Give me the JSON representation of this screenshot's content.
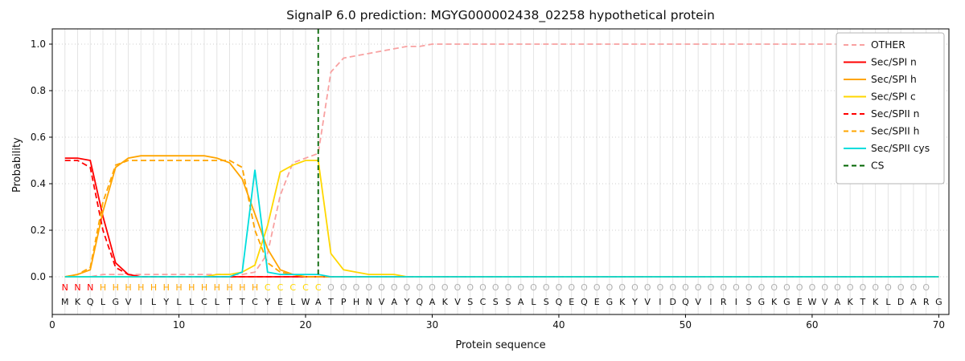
{
  "chart_data": {
    "type": "line",
    "title": "SignalP 6.0 prediction: MGYG000002438_02258 hypothetical protein",
    "xlabel": "Protein sequence",
    "ylabel": "Probability",
    "x_range": [
      1,
      70
    ],
    "xlim": [
      0,
      70.8
    ],
    "ylim": [
      0.0,
      1.0
    ],
    "xticks": [
      0,
      10,
      20,
      30,
      40,
      50,
      60,
      70
    ],
    "yticks": [
      0.0,
      0.2,
      0.4,
      0.6,
      0.8,
      1.0
    ],
    "grid": true,
    "legend_position": "upper right",
    "legend": [
      "OTHER",
      "Sec/SPI n",
      "Sec/SPI h",
      "Sec/SPI c",
      "Sec/SPII n",
      "Sec/SPII h",
      "Sec/SPII cys",
      "CS"
    ],
    "series": [
      {
        "name": "OTHER",
        "color": "#f8a1a1",
        "dash": true,
        "values": [
          0.0,
          0.0,
          0.0,
          0.01,
          0.01,
          0.01,
          0.01,
          0.01,
          0.01,
          0.01,
          0.01,
          0.01,
          0.01,
          0.01,
          0.01,
          0.02,
          0.1,
          0.35,
          0.49,
          0.51,
          0.53,
          0.88,
          0.94,
          0.95,
          0.96,
          0.97,
          0.98,
          0.99,
          0.99,
          1.0,
          1.0,
          1.0,
          1.0,
          1.0,
          1.0,
          1.0,
          1.0,
          1.0,
          1.0,
          1.0,
          1.0,
          1.0,
          1.0,
          1.0,
          1.0,
          1.0,
          1.0,
          1.0,
          1.0,
          1.0,
          1.0,
          1.0,
          1.0,
          1.0,
          1.0,
          1.0,
          1.0,
          1.0,
          1.0,
          1.0,
          1.0,
          1.0,
          1.0,
          1.0,
          1.0,
          1.0,
          1.0,
          1.0,
          1.0,
          1.0
        ]
      },
      {
        "name": "Sec/SPI n",
        "color": "#ff0000",
        "dash": false,
        "values": [
          0.51,
          0.51,
          0.5,
          0.26,
          0.06,
          0.01,
          0.0,
          0.0,
          0.0,
          0.0,
          0.0,
          0.0,
          0.0,
          0.0,
          0.0,
          0.0,
          0.0,
          0.0,
          0.0,
          0.0,
          0.0,
          0.0,
          0.0,
          0.0,
          0.0,
          0.0,
          0.0,
          0.0,
          0.0,
          0.0,
          0.0,
          0.0,
          0.0,
          0.0,
          0.0,
          0.0,
          0.0,
          0.0,
          0.0,
          0.0,
          0.0,
          0.0,
          0.0,
          0.0,
          0.0,
          0.0,
          0.0,
          0.0,
          0.0,
          0.0,
          0.0,
          0.0,
          0.0,
          0.0,
          0.0,
          0.0,
          0.0,
          0.0,
          0.0,
          0.0,
          0.0,
          0.0,
          0.0,
          0.0,
          0.0,
          0.0,
          0.0,
          0.0,
          0.0,
          0.0
        ]
      },
      {
        "name": "Sec/SPI h",
        "color": "#ffa500",
        "dash": false,
        "values": [
          0.0,
          0.01,
          0.03,
          0.28,
          0.47,
          0.51,
          0.52,
          0.52,
          0.52,
          0.52,
          0.52,
          0.52,
          0.51,
          0.49,
          0.42,
          0.27,
          0.12,
          0.03,
          0.01,
          0.0,
          0.0,
          0.0,
          0.0,
          0.0,
          0.0,
          0.0,
          0.0,
          0.0,
          0.0,
          0.0,
          0.0,
          0.0,
          0.0,
          0.0,
          0.0,
          0.0,
          0.0,
          0.0,
          0.0,
          0.0,
          0.0,
          0.0,
          0.0,
          0.0,
          0.0,
          0.0,
          0.0,
          0.0,
          0.0,
          0.0,
          0.0,
          0.0,
          0.0,
          0.0,
          0.0,
          0.0,
          0.0,
          0.0,
          0.0,
          0.0,
          0.0,
          0.0,
          0.0,
          0.0,
          0.0,
          0.0,
          0.0,
          0.0,
          0.0,
          0.0
        ]
      },
      {
        "name": "Sec/SPI c",
        "color": "#ffd700",
        "dash": false,
        "values": [
          0.0,
          0.0,
          0.0,
          0.0,
          0.0,
          0.0,
          0.0,
          0.0,
          0.0,
          0.0,
          0.0,
          0.0,
          0.01,
          0.01,
          0.02,
          0.05,
          0.22,
          0.45,
          0.48,
          0.5,
          0.5,
          0.1,
          0.03,
          0.02,
          0.01,
          0.01,
          0.01,
          0.0,
          0.0,
          0.0,
          0.0,
          0.0,
          0.0,
          0.0,
          0.0,
          0.0,
          0.0,
          0.0,
          0.0,
          0.0,
          0.0,
          0.0,
          0.0,
          0.0,
          0.0,
          0.0,
          0.0,
          0.0,
          0.0,
          0.0,
          0.0,
          0.0,
          0.0,
          0.0,
          0.0,
          0.0,
          0.0,
          0.0,
          0.0,
          0.0,
          0.0,
          0.0,
          0.0,
          0.0,
          0.0,
          0.0,
          0.0,
          0.0,
          0.0,
          0.0
        ]
      },
      {
        "name": "Sec/SPII n",
        "color": "#ff0000",
        "dash": true,
        "values": [
          0.5,
          0.5,
          0.47,
          0.2,
          0.04,
          0.01,
          0.0,
          0.0,
          0.0,
          0.0,
          0.0,
          0.0,
          0.0,
          0.0,
          0.0,
          0.0,
          0.0,
          0.0,
          0.0,
          0.0,
          0.0,
          0.0,
          0.0,
          0.0,
          0.0,
          0.0,
          0.0,
          0.0,
          0.0,
          0.0,
          0.0,
          0.0,
          0.0,
          0.0,
          0.0,
          0.0,
          0.0,
          0.0,
          0.0,
          0.0,
          0.0,
          0.0,
          0.0,
          0.0,
          0.0,
          0.0,
          0.0,
          0.0,
          0.0,
          0.0,
          0.0,
          0.0,
          0.0,
          0.0,
          0.0,
          0.0,
          0.0,
          0.0,
          0.0,
          0.0,
          0.0,
          0.0,
          0.0,
          0.0,
          0.0,
          0.0,
          0.0,
          0.0,
          0.0,
          0.0
        ]
      },
      {
        "name": "Sec/SPII h",
        "color": "#ffa500",
        "dash": true,
        "values": [
          0.0,
          0.01,
          0.04,
          0.32,
          0.48,
          0.5,
          0.5,
          0.5,
          0.5,
          0.5,
          0.5,
          0.5,
          0.5,
          0.5,
          0.47,
          0.2,
          0.06,
          0.02,
          0.01,
          0.0,
          0.0,
          0.0,
          0.0,
          0.0,
          0.0,
          0.0,
          0.0,
          0.0,
          0.0,
          0.0,
          0.0,
          0.0,
          0.0,
          0.0,
          0.0,
          0.0,
          0.0,
          0.0,
          0.0,
          0.0,
          0.0,
          0.0,
          0.0,
          0.0,
          0.0,
          0.0,
          0.0,
          0.0,
          0.0,
          0.0,
          0.0,
          0.0,
          0.0,
          0.0,
          0.0,
          0.0,
          0.0,
          0.0,
          0.0,
          0.0,
          0.0,
          0.0,
          0.0,
          0.0,
          0.0,
          0.0,
          0.0,
          0.0,
          0.0,
          0.0
        ]
      },
      {
        "name": "Sec/SPII cys",
        "color": "#00dddd",
        "dash": false,
        "values": [
          0.0,
          0.0,
          0.0,
          0.0,
          0.0,
          0.0,
          0.0,
          0.0,
          0.0,
          0.0,
          0.0,
          0.0,
          0.0,
          0.0,
          0.02,
          0.46,
          0.02,
          0.01,
          0.01,
          0.01,
          0.01,
          0.0,
          0.0,
          0.0,
          0.0,
          0.0,
          0.0,
          0.0,
          0.0,
          0.0,
          0.0,
          0.0,
          0.0,
          0.0,
          0.0,
          0.0,
          0.0,
          0.0,
          0.0,
          0.0,
          0.0,
          0.0,
          0.0,
          0.0,
          0.0,
          0.0,
          0.0,
          0.0,
          0.0,
          0.0,
          0.0,
          0.0,
          0.0,
          0.0,
          0.0,
          0.0,
          0.0,
          0.0,
          0.0,
          0.0,
          0.0,
          0.0,
          0.0,
          0.0,
          0.0,
          0.0,
          0.0,
          0.0,
          0.0,
          0.0
        ]
      }
    ],
    "cs": {
      "name": "CS",
      "position": 21,
      "color": "#006400",
      "dash": true
    },
    "sequence": "MKQLGVILYLLCLTTCYELWATPHNVAYQAKVSCSSALSQEQEGKYVIDQVIRISGKGEWVAKTKLDARG",
    "region_labels": "NNNHHHHHHHHHHHHHCCCCCOOOOOOOOOOOOOOOOOOOOOOOOOOOOOOOOOOOOOOOOOOOOOOOO",
    "region_colors": {
      "N": "#ff0000",
      "H": "#ffa500",
      "C": "#ffd700",
      "O": "#b0b0b0"
    }
  }
}
